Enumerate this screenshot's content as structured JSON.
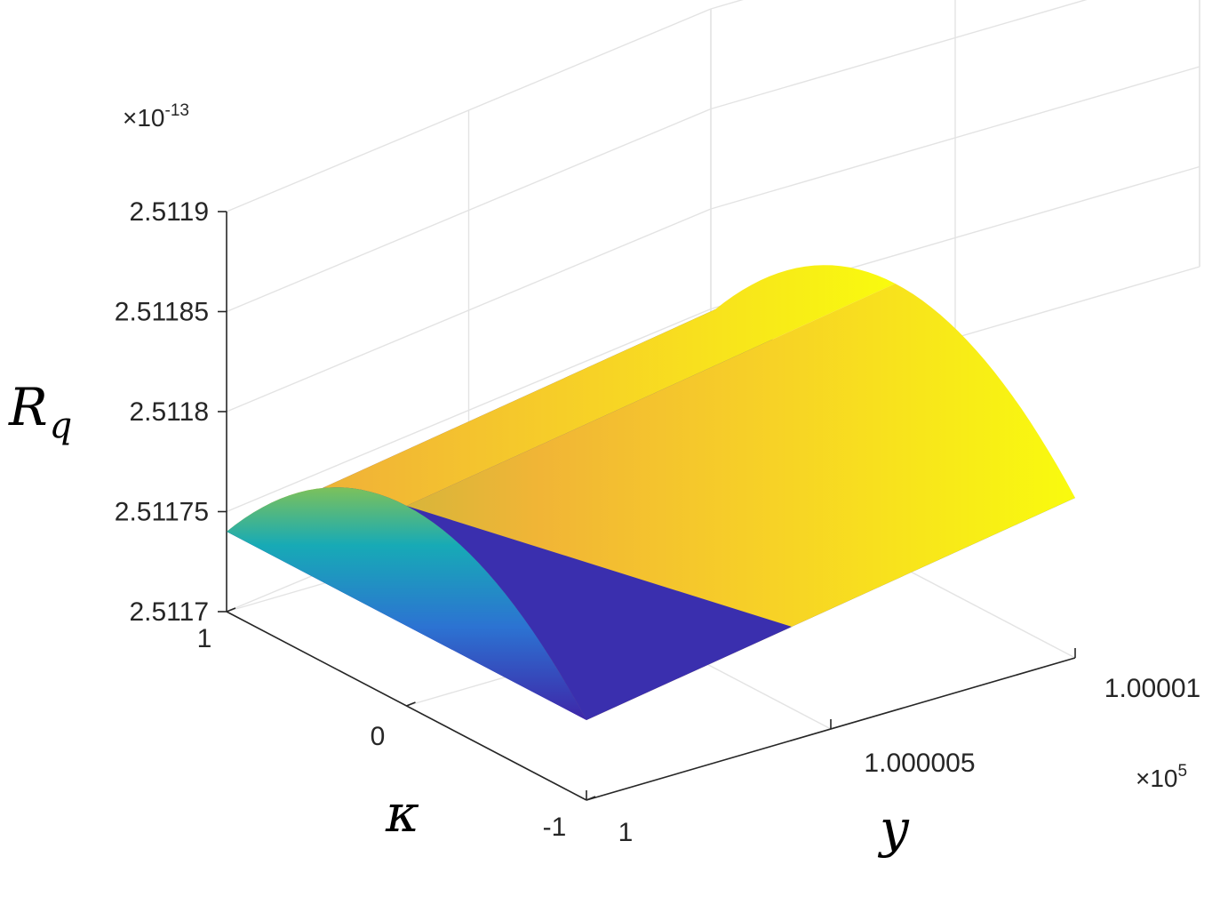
{
  "chart_data": {
    "type": "surface",
    "title": "",
    "zlabel": "R",
    "zlabel_sub": "q",
    "xlabel": "y",
    "ylabel": "κ",
    "x_range": [
      100000,
      100001
    ],
    "y_range": [
      -1,
      1
    ],
    "zlim": [
      2.5117e-13,
      2.5119e-13
    ],
    "z_multiplier_label": {
      "base": "×10",
      "exp": "-13"
    },
    "x_multiplier_label": {
      "base": "×10",
      "exp": "5"
    },
    "z_ticks": [
      {
        "value": 2.5117,
        "label": "2.5117"
      },
      {
        "value": 2.51175,
        "label": "2.51175"
      },
      {
        "value": 2.5118,
        "label": "2.5118"
      },
      {
        "value": 2.51185,
        "label": "2.51185"
      },
      {
        "value": 2.5119,
        "label": "2.5119"
      }
    ],
    "y_ticks": [
      {
        "value": 1,
        "label": "1"
      },
      {
        "value": 0,
        "label": "0"
      },
      {
        "value": -1,
        "label": "-1"
      }
    ],
    "x_ticks": [
      {
        "value": 1,
        "label": "1"
      },
      {
        "value": 1.000005,
        "label": "1.000005"
      },
      {
        "value": 1.00001,
        "label": "1.00001"
      }
    ],
    "surface_profile": {
      "description_kappa_values": [
        -1,
        0,
        1
      ],
      "z_at_kappa_-1_scaled": 2.51174,
      "z_at_kappa_0_scaled": 2.5118,
      "z_at_kappa_1_scaled": 2.51174,
      "z_increase_over_x_range_scaled": 4e-05
    },
    "colormap": [
      "#3e26a8",
      "#2c73d2",
      "#17aab6",
      "#7cc15b",
      "#f1b536",
      "#f9fb0e"
    ],
    "grid": true
  }
}
